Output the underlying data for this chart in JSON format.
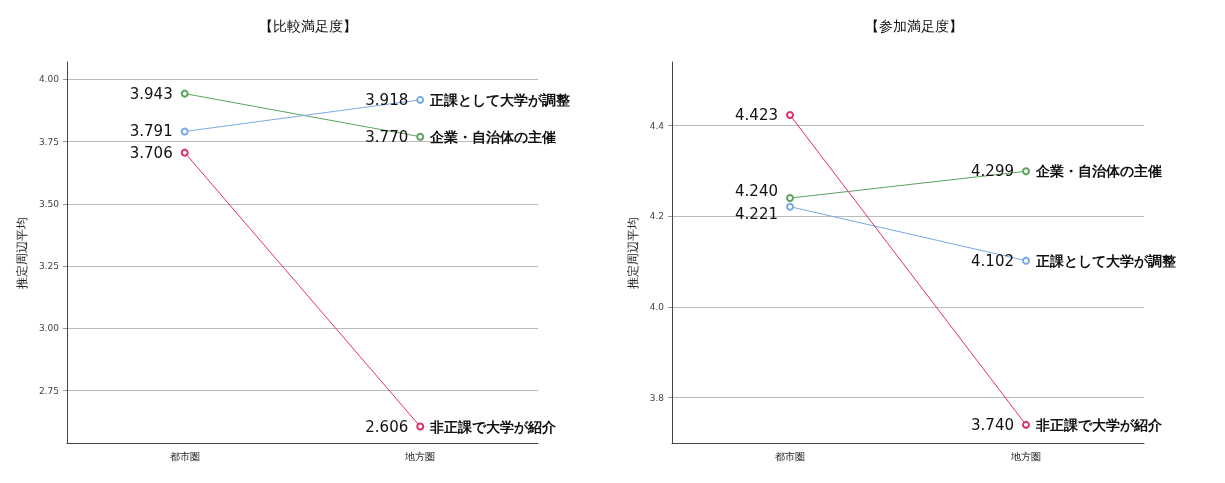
{
  "chart_data": [
    {
      "type": "line",
      "title": "【比較満足度】",
      "ylabel": "推定周辺平均",
      "categories": [
        "都市圏",
        "地方圏"
      ],
      "ylim": [
        2.54,
        4.07
      ],
      "yticks": [
        {
          "value": 2.75,
          "label": "2.75"
        },
        {
          "value": 3,
          "label": "3.00"
        },
        {
          "value": 3.25,
          "label": "3.25"
        },
        {
          "value": 3.5,
          "label": "3.50"
        },
        {
          "value": 3.75,
          "label": "3.75"
        },
        {
          "value": 4,
          "label": "4.00"
        }
      ],
      "grid": "y",
      "legend": false,
      "marker": "circle",
      "line_style": "solid",
      "series": [
        {
          "name": "企業・自治体の主催",
          "color": "#5ba35b",
          "values": [
            3.943,
            3.77
          ],
          "value_labels": [
            "3.943",
            "3.770"
          ]
        },
        {
          "name": "正課として大学が調整",
          "color": "#7ba7e8",
          "values": [
            3.791,
            3.918
          ],
          "value_labels": [
            "3.791",
            "3.918"
          ]
        },
        {
          "name": "非正課で大学が紹介",
          "color": "#e0306a",
          "values": [
            3.706,
            2.606
          ],
          "value_labels": [
            "3.706",
            "2.606"
          ]
        }
      ]
    },
    {
      "type": "line",
      "title": "【参加満足度】",
      "ylabel": "推定周辺平均",
      "categories": [
        "都市圏",
        "地方圏"
      ],
      "ylim": [
        3.7,
        4.54
      ],
      "yticks": [
        {
          "value": 3.8,
          "label": "3.8"
        },
        {
          "value": 4,
          "label": "4.0"
        },
        {
          "value": 4.2,
          "label": "4.2"
        },
        {
          "value": 4.4,
          "label": "4.4"
        }
      ],
      "grid": "y",
      "legend": false,
      "marker": "circle",
      "line_style": "solid",
      "series": [
        {
          "name": "企業・自治体の主催",
          "color": "#5ba35b",
          "values": [
            4.24,
            4.299
          ],
          "value_labels": [
            "4.240",
            "4.299"
          ]
        },
        {
          "name": "正課として大学が調整",
          "color": "#7ba7e8",
          "values": [
            4.221,
            4.102
          ],
          "value_labels": [
            "4.221",
            "4.102"
          ]
        },
        {
          "name": "非正課で大学が紹介",
          "color": "#e0306a",
          "values": [
            4.423,
            3.74
          ],
          "value_labels": [
            "4.423",
            "3.740"
          ]
        }
      ]
    }
  ]
}
